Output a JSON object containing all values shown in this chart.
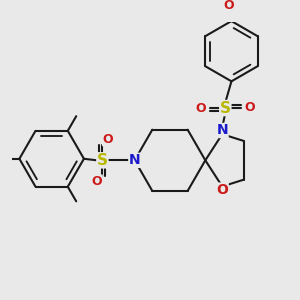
{
  "bg_color": "#e9e9e9",
  "bond_color": "#1a1a1a",
  "bond_width": 1.5,
  "N_color": "#1a1acc",
  "O_color": "#cc1a1a",
  "S_color": "#b8b800",
  "font_size": 9,
  "fig_size": [
    3.0,
    3.0
  ],
  "dpi": 100,
  "xlim": [
    0.05,
    0.95
  ],
  "ylim": [
    0.05,
    0.95
  ]
}
